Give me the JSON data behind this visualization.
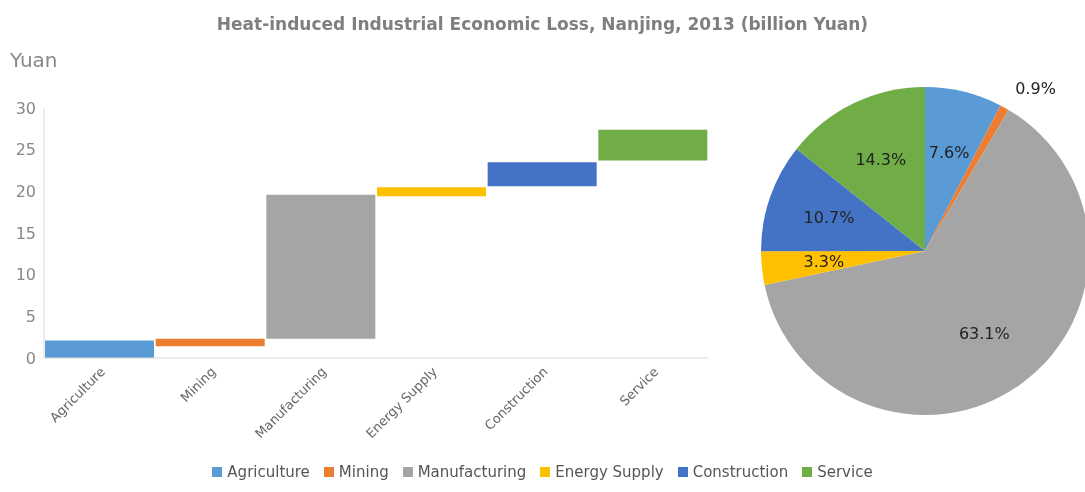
{
  "chart_data": [
    {
      "type": "bar",
      "title": "Heat-induced Industrial Economic Loss, Nanjing, 2013 (billion Yuan)",
      "ylabel": "Yuan",
      "categories": [
        "Agriculture",
        "Mining",
        "Manufacturing",
        "Energy Supply",
        "Construction",
        "Service"
      ],
      "values": [
        2.1,
        0.9,
        17.3,
        1.1,
        2.9,
        3.7
      ],
      "base": [
        0,
        1.4,
        2.3,
        19.4,
        20.6,
        23.7
      ],
      "colors": [
        "#5b9bd5",
        "#ed7d31",
        "#a5a5a5",
        "#ffc000",
        "#4472c4",
        "#70ad47"
      ],
      "ylim": [
        0,
        30
      ],
      "yticks": [
        0,
        5,
        10,
        15,
        20,
        25,
        30
      ],
      "grid": false
    },
    {
      "type": "pie",
      "categories": [
        "Agriculture",
        "Mining",
        "Manufacturing",
        "Energy Supply",
        "Construction",
        "Service"
      ],
      "values": [
        7.6,
        0.9,
        63.1,
        3.3,
        10.7,
        14.3
      ],
      "value_labels": [
        "7.6%",
        "0.9%",
        "63.1%",
        "3.3%",
        "10.7%",
        "14.3%"
      ],
      "colors": [
        "#5b9bd5",
        "#ed7d31",
        "#a5a5a5",
        "#ffc000",
        "#4472c4",
        "#70ad47"
      ],
      "legend": "bottom"
    }
  ]
}
